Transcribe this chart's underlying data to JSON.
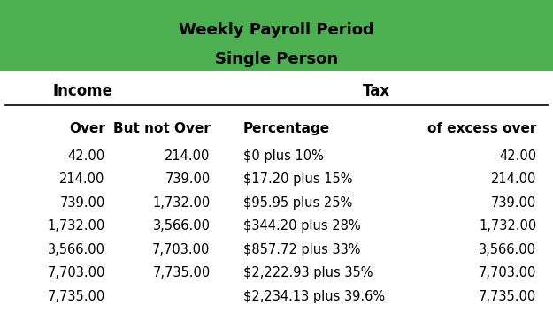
{
  "title_line1": "Weekly Payroll Period",
  "title_line2": "Single Person",
  "title_bg_color": "#4CAF50",
  "title_text_color": "#000000",
  "header1_text": "Income",
  "header2_text": "Tax",
  "col_headers": [
    "Over",
    "But not Over",
    "Percentage",
    "of excess over"
  ],
  "rows": [
    [
      "42.00",
      "214.00",
      "$0 plus 10%",
      "42.00"
    ],
    [
      "214.00",
      "739.00",
      "$17.20 plus 15%",
      "214.00"
    ],
    [
      "739.00",
      "1,732.00",
      "$95.95 plus 25%",
      "739.00"
    ],
    [
      "1,732.00",
      "3,566.00",
      "$344.20 plus 28%",
      "1,732.00"
    ],
    [
      "3,566.00",
      "7,703.00",
      "$857.72 plus 33%",
      "3,566.00"
    ],
    [
      "7,703.00",
      "7,735.00",
      "$2,222.93 plus 35%",
      "7,703.00"
    ],
    [
      "7,735.00",
      "",
      "$2,234.13 plus 39.6%",
      "7,735.00"
    ]
  ],
  "bg_color": "#ffffff",
  "header_font_size": 11,
  "data_font_size": 10.5,
  "title_font_size": 13
}
